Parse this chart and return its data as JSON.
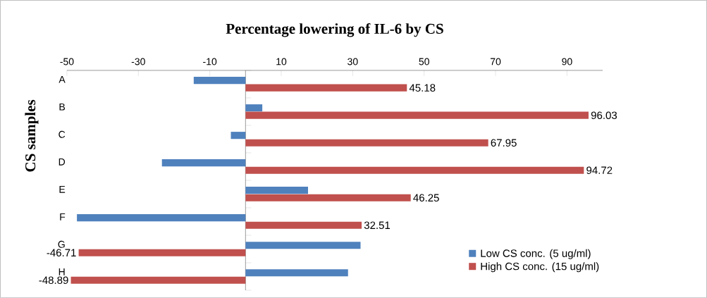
{
  "chart_data": {
    "type": "bar",
    "orientation": "horizontal",
    "title": "Percentage lowering of IL-6 by CS",
    "ylabel": "CS samples",
    "categories": [
      "A",
      "B",
      "C",
      "D",
      "E",
      "F",
      "G",
      "H"
    ],
    "series": [
      {
        "name": "Low CS conc. (5 ug/ml)",
        "color": "#4f81bd",
        "values": [
          -14.5,
          4.7,
          -4.1,
          -23.4,
          17.5,
          -47.2,
          32.2,
          28.7
        ]
      },
      {
        "name": "High CS conc. (15 ug/ml)",
        "color": "#c0504d",
        "values": [
          45.18,
          96.03,
          67.95,
          94.72,
          46.25,
          32.51,
          -46.71,
          -48.89
        ],
        "value_labels": [
          "45.18",
          "96.03",
          "67.95",
          "94.72",
          "46.25",
          "32.51",
          "-46.71",
          "-48.89"
        ]
      }
    ],
    "xlim": [
      -50,
      100
    ],
    "xticks": [
      -50,
      -30,
      -10,
      10,
      30,
      50,
      70,
      90
    ],
    "legend": "bottom right",
    "grid": false
  }
}
